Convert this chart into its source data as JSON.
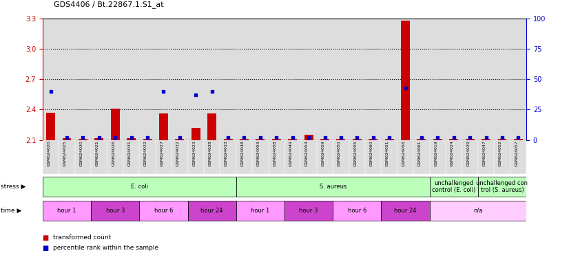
{
  "title": "GDS4406 / Bt.22867.1.S1_at",
  "samples": [
    "GSM624020",
    "GSM624025",
    "GSM624030",
    "GSM624021",
    "GSM624026",
    "GSM624031",
    "GSM624022",
    "GSM624027",
    "GSM624032",
    "GSM624023",
    "GSM624028",
    "GSM624033",
    "GSM624048",
    "GSM624053",
    "GSM624058",
    "GSM624049",
    "GSM624054",
    "GSM624059",
    "GSM624050",
    "GSM624055",
    "GSM624060",
    "GSM624051",
    "GSM624056",
    "GSM624061",
    "GSM624019",
    "GSM624024",
    "GSM624029",
    "GSM624047",
    "GSM624052",
    "GSM624057"
  ],
  "red_values": [
    2.37,
    2.12,
    2.11,
    2.12,
    2.41,
    2.12,
    2.11,
    2.36,
    2.11,
    2.22,
    2.36,
    2.11,
    2.11,
    2.11,
    2.11,
    2.11,
    2.15,
    2.11,
    2.11,
    2.11,
    2.11,
    2.11,
    3.28,
    2.11,
    2.11,
    2.11,
    2.11,
    2.11,
    2.11,
    2.11
  ],
  "blue_values": [
    40,
    2,
    2,
    2,
    2,
    2,
    2,
    40,
    2,
    37,
    40,
    2,
    2,
    2,
    2,
    2,
    2,
    2,
    2,
    2,
    2,
    2,
    43,
    2,
    2,
    2,
    2,
    2,
    2,
    2
  ],
  "ylim_left": [
    2.1,
    3.3
  ],
  "ylim_right": [
    0,
    100
  ],
  "yticks_left": [
    2.1,
    2.4,
    2.7,
    3.0,
    3.3
  ],
  "yticks_right": [
    0,
    25,
    50,
    75,
    100
  ],
  "hlines": [
    2.4,
    2.7,
    3.0
  ],
  "stress_groups": [
    {
      "label": "E. coli",
      "start": 0,
      "end": 12,
      "color": "#bbffbb"
    },
    {
      "label": "S. aureus",
      "start": 12,
      "end": 24,
      "color": "#bbffbb"
    },
    {
      "label": "unchallenged\ncontrol (E. coli)",
      "start": 24,
      "end": 27,
      "color": "#bbffbb"
    },
    {
      "label": "unchallenged con\ntrol (S. aureus)",
      "start": 27,
      "end": 30,
      "color": "#bbffbb"
    }
  ],
  "time_groups": [
    {
      "label": "hour 1",
      "start": 0,
      "end": 3,
      "color": "#ff99ff"
    },
    {
      "label": "hour 3",
      "start": 3,
      "end": 6,
      "color": "#cc44cc"
    },
    {
      "label": "hour 6",
      "start": 6,
      "end": 9,
      "color": "#ff99ff"
    },
    {
      "label": "hour 24",
      "start": 9,
      "end": 12,
      "color": "#cc44cc"
    },
    {
      "label": "hour 1",
      "start": 12,
      "end": 15,
      "color": "#ff99ff"
    },
    {
      "label": "hour 3",
      "start": 15,
      "end": 18,
      "color": "#cc44cc"
    },
    {
      "label": "hour 6",
      "start": 18,
      "end": 21,
      "color": "#ff99ff"
    },
    {
      "label": "hour 24",
      "start": 21,
      "end": 24,
      "color": "#cc44cc"
    },
    {
      "label": "n/a",
      "start": 24,
      "end": 30,
      "color": "#ffccff"
    }
  ],
  "red_color": "#cc0000",
  "blue_color": "#0000cc",
  "bar_width": 0.55,
  "base_value": 2.1,
  "col_bg_color": "#dddddd",
  "legend_items": [
    {
      "label": "transformed count",
      "color": "#cc0000"
    },
    {
      "label": "percentile rank within the sample",
      "color": "#0000cc"
    }
  ]
}
